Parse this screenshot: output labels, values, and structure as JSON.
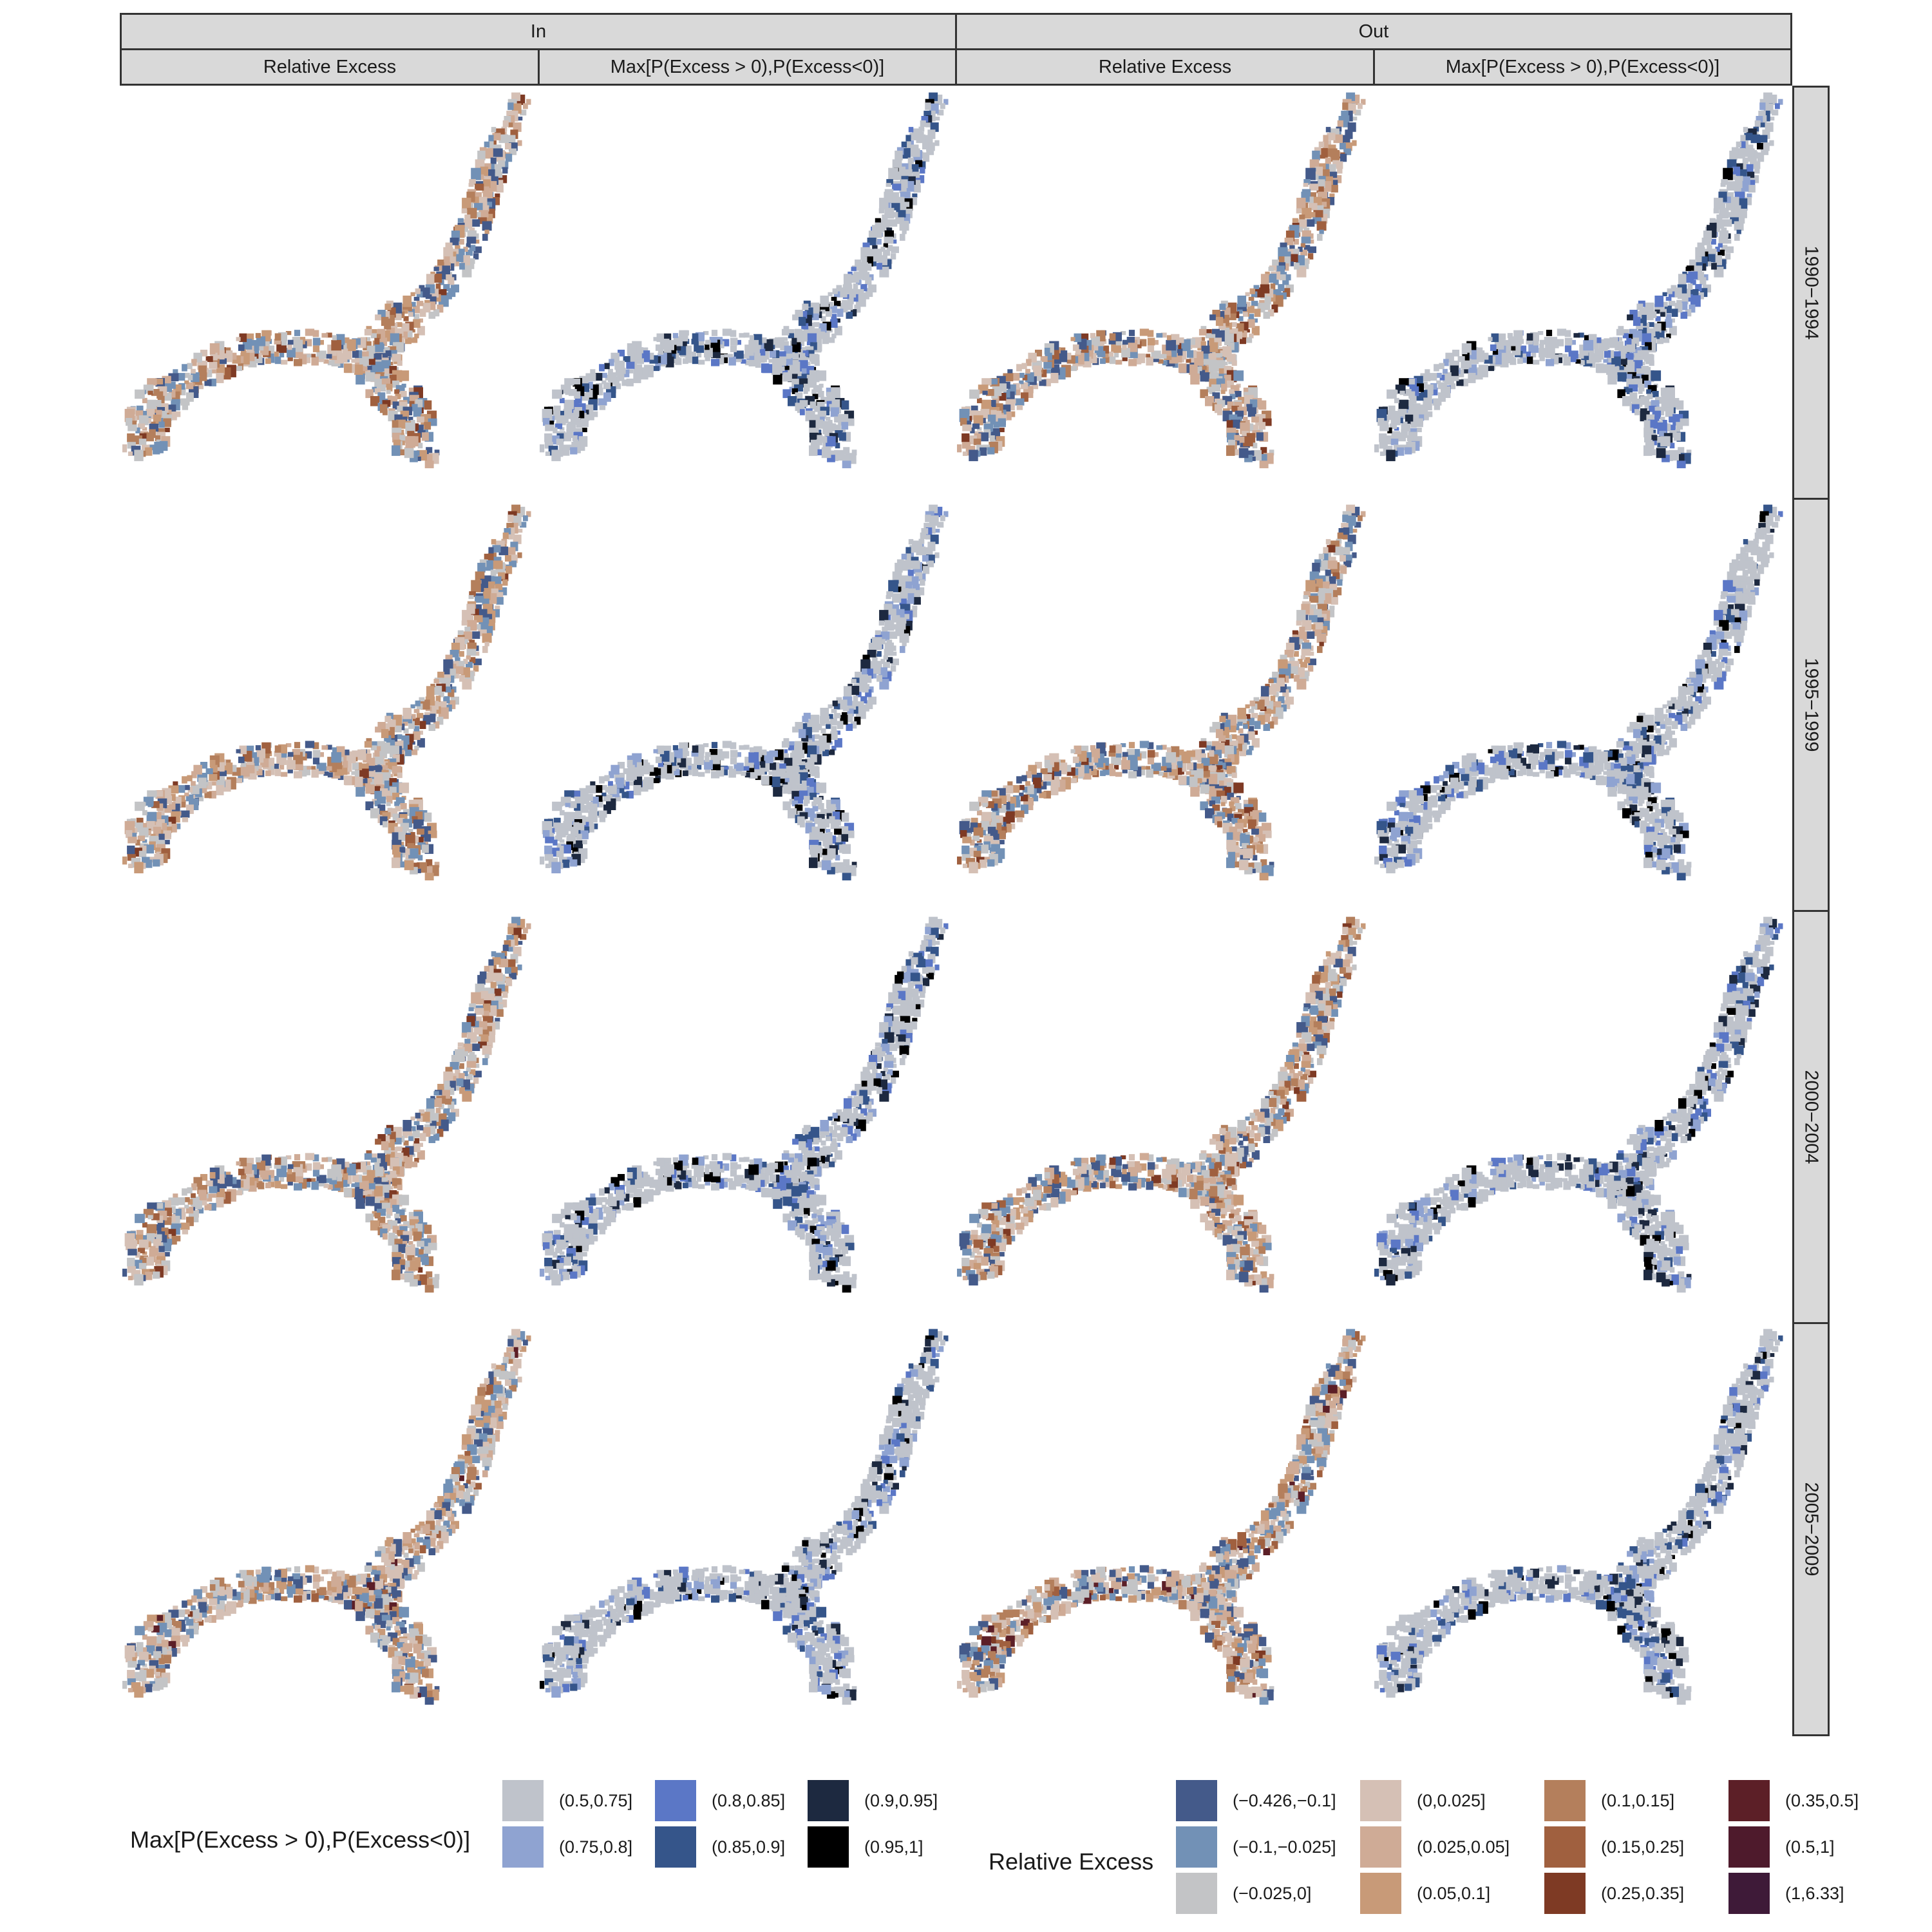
{
  "facets": {
    "columns_top": [
      "In",
      "Out"
    ],
    "columns_sub": [
      "Relative Excess",
      "Max[P(Excess > 0),P(Excess<0)]",
      "Relative Excess",
      "Max[P(Excess > 0),P(Excess<0)]"
    ],
    "rows": [
      "1990−1994",
      "1995−1999",
      "2000−2004",
      "2005−2009"
    ]
  },
  "legend_prob": {
    "title": "Max[P(Excess > 0),P(Excess<0)]",
    "items": [
      {
        "label": "(0.5,0.75]",
        "color": "#bfc3cb"
      },
      {
        "label": "(0.75,0.8]",
        "color": "#8fa3d1"
      },
      {
        "label": "(0.8,0.85]",
        "color": "#5b77c6"
      },
      {
        "label": "(0.85,0.9]",
        "color": "#35558a"
      },
      {
        "label": "(0.9,0.95]",
        "color": "#1d2940"
      },
      {
        "label": "(0.95,1]",
        "color": "#000000"
      }
    ]
  },
  "legend_excess": {
    "title": "Relative Excess",
    "items": [
      {
        "label": "(−0.426,−0.1]",
        "color": "#445a8a"
      },
      {
        "label": "(−0.1,−0.025]",
        "color": "#7291b6"
      },
      {
        "label": "(−0.025,0]",
        "color": "#c3c4c6"
      },
      {
        "label": "(0,0.025]",
        "color": "#d5c0b5"
      },
      {
        "label": "(0.025,0.05]",
        "color": "#cfab96"
      },
      {
        "label": "(0.05,0.1]",
        "color": "#c89a78"
      },
      {
        "label": "(0.1,0.15]",
        "color": "#b47f5c"
      },
      {
        "label": "(0.15,0.25]",
        "color": "#a0603f"
      },
      {
        "label": "(0.25,0.35]",
        "color": "#7e3a24"
      },
      {
        "label": "(0.35,0.5]",
        "color": "#5c1f27"
      },
      {
        "label": "(0.5,1]",
        "color": "#4e1a2c"
      },
      {
        "label": "(1,6.33]",
        "color": "#3e1a38"
      }
    ]
  },
  "chart_data": {
    "type": "heatmap",
    "description_kind": "choropleth small multiples",
    "panels": [
      {
        "row": "1990−1994",
        "column": "In / Relative Excess"
      },
      {
        "row": "1990−1994",
        "column": "In / Max[P(Excess > 0),P(Excess<0)]"
      },
      {
        "row": "1990−1994",
        "column": "Out / Relative Excess"
      },
      {
        "row": "1990−1994",
        "column": "Out / Max[P(Excess > 0),P(Excess<0)]"
      },
      {
        "row": "1995−1999",
        "column": "In / Relative Excess"
      },
      {
        "row": "1995−1999",
        "column": "In / Max[P(Excess > 0),P(Excess<0)]"
      },
      {
        "row": "1995−1999",
        "column": "Out / Relative Excess"
      },
      {
        "row": "1995−1999",
        "column": "Out / Max[P(Excess > 0),P(Excess<0)]"
      },
      {
        "row": "2000−2004",
        "column": "In / Relative Excess"
      },
      {
        "row": "2000−2004",
        "column": "In / Max[P(Excess > 0),P(Excess<0)]"
      },
      {
        "row": "2000−2004",
        "column": "Out / Relative Excess"
      },
      {
        "row": "2000−2004",
        "column": "Out / Max[P(Excess > 0),P(Excess<0)]"
      },
      {
        "row": "2005−2009",
        "column": "In / Relative Excess"
      },
      {
        "row": "2005−2009",
        "column": "In / Max[P(Excess > 0),P(Excess<0)]"
      },
      {
        "row": "2005−2009",
        "column": "Out / Relative Excess"
      },
      {
        "row": "2005−2009",
        "column": "Out / Max[P(Excess > 0),P(Excess<0)]"
      }
    ]
  }
}
